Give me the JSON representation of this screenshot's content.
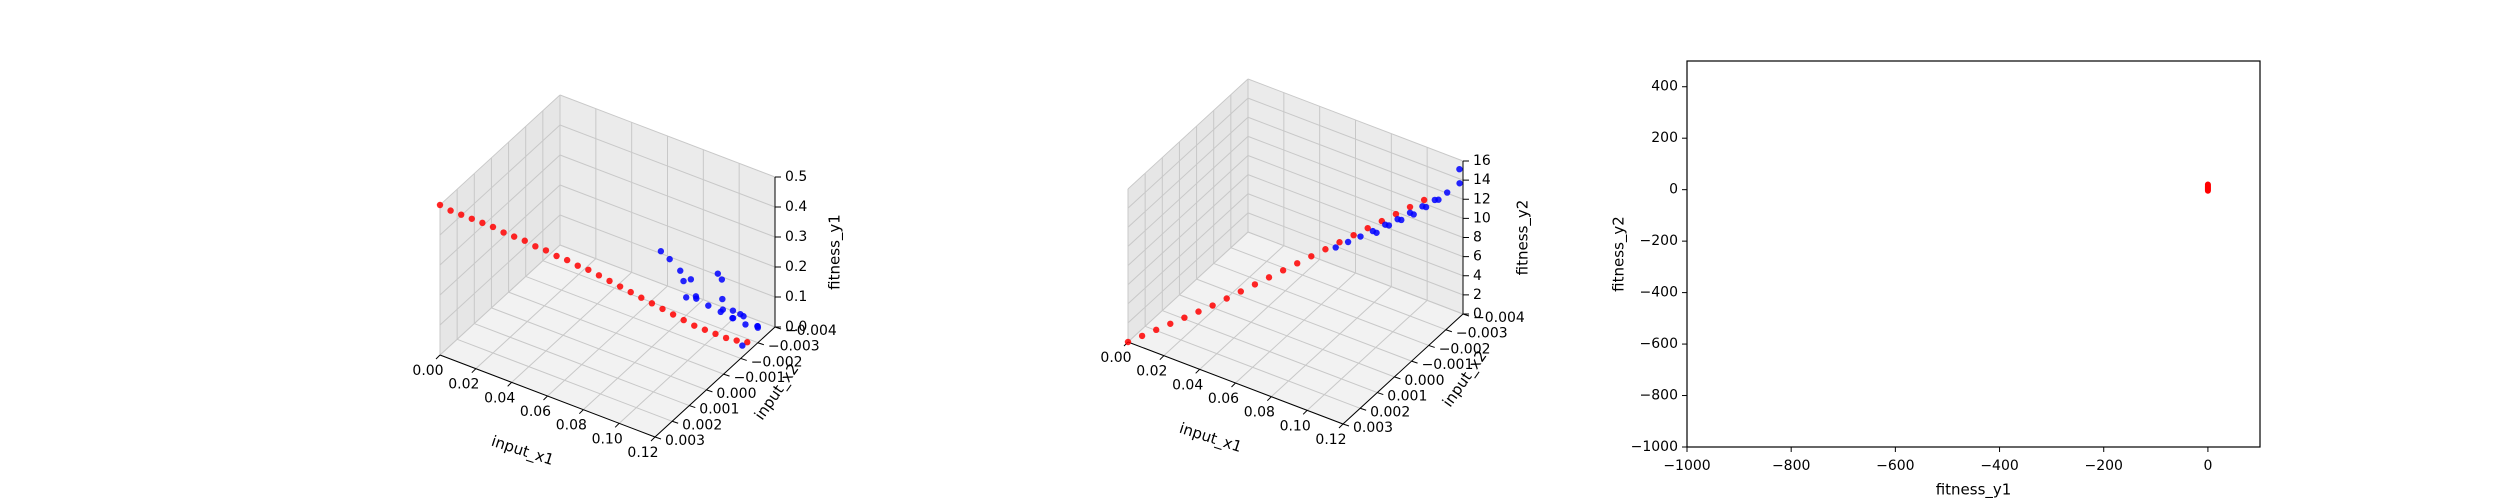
{
  "chart_data": [
    {
      "type": "scatter3d",
      "xlabel": "input_x1",
      "ylabel": "input_x2",
      "zlabel": "fitness_y1",
      "xlim": [
        0.0,
        0.12
      ],
      "ylim": [
        -0.004,
        0.003
      ],
      "zlim": [
        0.0,
        0.5
      ],
      "x_ticks": [
        "0.00",
        "0.02",
        "0.04",
        "0.06",
        "0.08",
        "0.10",
        "0.12"
      ],
      "y_ticks": [
        "−0.004",
        "−0.003",
        "−0.002",
        "−0.001",
        "0.000",
        "0.001",
        "0.002",
        "0.003"
      ],
      "z_ticks": [
        "0.0",
        "0.1",
        "0.2",
        "0.3",
        "0.4",
        "0.5"
      ],
      "grid": true,
      "series": [
        {
          "color": "#ff0000",
          "points": [
            [
              0.0,
              -0.004,
              0.5
            ],
            [
              0.004,
              -0.0038,
              0.48
            ],
            [
              0.008,
              -0.0036,
              0.465
            ],
            [
              0.012,
              -0.0034,
              0.45
            ],
            [
              0.016,
              -0.0032,
              0.435
            ],
            [
              0.02,
              -0.003,
              0.42
            ],
            [
              0.024,
              -0.0028,
              0.4
            ],
            [
              0.028,
              -0.0026,
              0.385
            ],
            [
              0.032,
              -0.0024,
              0.37
            ],
            [
              0.036,
              -0.0022,
              0.35
            ],
            [
              0.04,
              -0.002,
              0.335
            ],
            [
              0.044,
              -0.0018,
              0.315
            ],
            [
              0.048,
              -0.0016,
              0.3
            ],
            [
              0.052,
              -0.0014,
              0.28
            ],
            [
              0.056,
              -0.0012,
              0.265
            ],
            [
              0.06,
              -0.001,
              0.245
            ],
            [
              0.064,
              -0.0008,
              0.225
            ],
            [
              0.068,
              -0.0006,
              0.205
            ],
            [
              0.072,
              -0.0004,
              0.185
            ],
            [
              0.076,
              -0.0002,
              0.165
            ],
            [
              0.08,
              0.0,
              0.145
            ],
            [
              0.084,
              0.0002,
              0.125
            ],
            [
              0.088,
              0.0004,
              0.105
            ],
            [
              0.092,
              0.0006,
              0.085
            ],
            [
              0.096,
              0.0008,
              0.065
            ],
            [
              0.1,
              0.001,
              0.05
            ],
            [
              0.104,
              0.0012,
              0.035
            ],
            [
              0.108,
              0.0014,
              0.02
            ],
            [
              0.112,
              0.0016,
              0.01
            ],
            [
              0.116,
              0.0018,
              0.003
            ]
          ]
        },
        {
          "color": "#0000ff",
          "points": [
            [
              0.09,
              0.0008,
              0.2
            ],
            [
              0.095,
              0.001,
              0.15
            ],
            [
              0.1,
              0.0012,
              0.12
            ],
            [
              0.105,
              0.0014,
              0.1
            ],
            [
              0.11,
              0.0016,
              0.08
            ],
            [
              0.115,
              0.0018,
              0.06
            ],
            [
              0.12,
              0.002,
              0.05
            ],
            [
              0.1,
              0.0005,
              0.18
            ],
            [
              0.11,
              0.001,
              0.14
            ],
            [
              0.115,
              0.0015,
              0.11
            ],
            [
              0.118,
              0.0022,
              0.04
            ],
            [
              0.112,
              0.002,
              0.07
            ],
            [
              0.108,
              0.0018,
              0.09
            ],
            [
              0.104,
              0.0016,
              0.13
            ],
            [
              0.096,
              0.0006,
              0.23
            ],
            [
              0.092,
              0.0004,
              0.26
            ],
            [
              0.088,
              0.0002,
              0.3
            ],
            [
              0.085,
              0.0,
              0.33
            ],
            [
              0.102,
              0.0024,
              0.02
            ],
            [
              0.114,
              0.0026,
              0.01
            ],
            [
              0.119,
              0.0012,
              0.03
            ],
            [
              0.098,
              0.0022,
              0.15
            ],
            [
              0.09,
              0.0028,
              0.12
            ],
            [
              0.08,
              0.002,
              0.06
            ]
          ]
        }
      ]
    },
    {
      "type": "scatter3d",
      "xlabel": "input_x1",
      "ylabel": "input_x2",
      "zlabel": "fitness_y2",
      "xlim": [
        0.0,
        0.12
      ],
      "ylim": [
        -0.004,
        0.003
      ],
      "zlim": [
        0,
        16
      ],
      "x_ticks": [
        "0.00",
        "0.02",
        "0.04",
        "0.06",
        "0.08",
        "0.10",
        "0.12"
      ],
      "y_ticks": [
        "−0.004",
        "−0.003",
        "−0.002",
        "−0.001",
        "0.000",
        "0.001",
        "0.002",
        "0.003"
      ],
      "z_ticks": [
        "0",
        "2",
        "4",
        "6",
        "8",
        "10",
        "12",
        "14",
        "16"
      ],
      "grid": true,
      "series": [
        {
          "color": "#ff0000",
          "points": [
            [
              0.0,
              -0.004,
              0.0
            ],
            [
              0.005,
              -0.0037,
              0.5
            ],
            [
              0.01,
              -0.0034,
              1.0
            ],
            [
              0.015,
              -0.0031,
              1.5
            ],
            [
              0.02,
              -0.0028,
              2.0
            ],
            [
              0.025,
              -0.0025,
              2.5
            ],
            [
              0.03,
              -0.0022,
              3.0
            ],
            [
              0.035,
              -0.0019,
              3.6
            ],
            [
              0.04,
              -0.0016,
              4.2
            ],
            [
              0.045,
              -0.0013,
              4.8
            ],
            [
              0.05,
              -0.001,
              5.4
            ],
            [
              0.055,
              -0.0007,
              6.0
            ],
            [
              0.06,
              -0.0004,
              6.6
            ],
            [
              0.065,
              -0.0001,
              7.2
            ],
            [
              0.07,
              0.0002,
              7.8
            ],
            [
              0.075,
              0.0005,
              8.4
            ],
            [
              0.08,
              0.0008,
              9.0
            ],
            [
              0.085,
              0.0011,
              9.6
            ],
            [
              0.09,
              0.0014,
              10.2
            ],
            [
              0.095,
              0.0017,
              10.8
            ],
            [
              0.1,
              0.002,
              11.4
            ],
            [
              0.105,
              0.0023,
              12.0
            ]
          ]
        },
        {
          "color": "#0000ff",
          "points": [
            [
              0.07,
              0.0008,
              7.0
            ],
            [
              0.075,
              0.001,
              7.6
            ],
            [
              0.08,
              0.0012,
              8.2
            ],
            [
              0.085,
              0.0014,
              8.8
            ],
            [
              0.09,
              0.0016,
              9.5
            ],
            [
              0.095,
              0.0018,
              10.1
            ],
            [
              0.1,
              0.002,
              10.8
            ],
            [
              0.105,
              0.0022,
              11.5
            ],
            [
              0.11,
              0.0024,
              12.2
            ],
            [
              0.115,
              0.0026,
              13.0
            ],
            [
              0.12,
              0.0028,
              14.0
            ],
            [
              0.118,
              0.003,
              15.0
            ],
            [
              0.088,
              0.0013,
              9.0
            ],
            [
              0.093,
              0.0015,
              9.8
            ],
            [
              0.098,
              0.0017,
              10.4
            ],
            [
              0.103,
              0.0019,
              11.0
            ],
            [
              0.108,
              0.0021,
              11.8
            ],
            [
              0.113,
              0.0023,
              12.6
            ]
          ]
        }
      ]
    },
    {
      "type": "scatter",
      "xlabel": "fitness_y1",
      "ylabel": "fitness_y2",
      "xlim": [
        -1000,
        100
      ],
      "ylim": [
        -1000,
        500
      ],
      "x_ticks": [
        -1000,
        -800,
        -600,
        -400,
        -200,
        0
      ],
      "x_tick_labels": [
        "−1000",
        "−800",
        "−600",
        "−400",
        "−200",
        "0"
      ],
      "y_ticks": [
        -1000,
        -800,
        -600,
        -400,
        -200,
        0,
        200,
        400
      ],
      "y_tick_labels": [
        "−1000",
        "−800",
        "−600",
        "−400",
        "−200",
        "0",
        "200",
        "400"
      ],
      "grid": false,
      "series": [
        {
          "color": "#ff0000",
          "points": [
            [
              0,
              0
            ],
            [
              0,
              4
            ],
            [
              0,
              8
            ],
            [
              0,
              12
            ],
            [
              0,
              16
            ],
            [
              0,
              20
            ],
            [
              0,
              -4
            ]
          ]
        }
      ]
    }
  ]
}
